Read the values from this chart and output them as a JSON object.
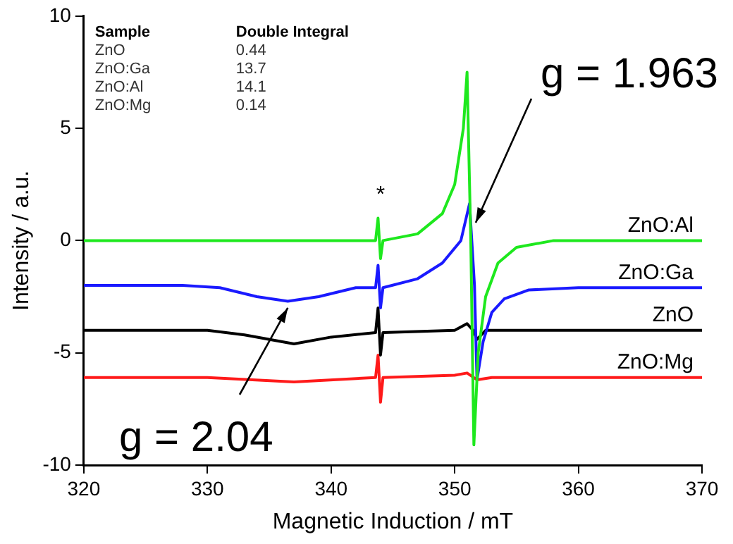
{
  "chart_data": {
    "type": "line",
    "xlabel": "Magnetic Induction / mT",
    "ylabel": "Intensity / a.u.",
    "xlim": [
      320,
      370
    ],
    "xticks": [
      320,
      330,
      340,
      350,
      360,
      370
    ],
    "ylim": [
      -10,
      10
    ],
    "yticks": [
      -10,
      -5,
      0,
      5,
      10
    ],
    "grid": false,
    "legend": false,
    "marker": "none",
    "line_style": "solid",
    "series": [
      {
        "name": "ZnO:Al",
        "color": "#1ee81e",
        "x": [
          320,
          330,
          340,
          343.6,
          343.8,
          344.0,
          344.2,
          347,
          349,
          350,
          350.7,
          351.0,
          351.3,
          351.55,
          351.9,
          352.5,
          353.5,
          355,
          358,
          370
        ],
        "values": [
          0,
          0,
          0,
          0,
          1.0,
          -0.8,
          0,
          0.3,
          1.2,
          2.5,
          5,
          7.5,
          0,
          -9.1,
          -5,
          -2.5,
          -1,
          -0.3,
          0,
          0
        ]
      },
      {
        "name": "ZnO:Ga",
        "color": "#1a1aff",
        "x": [
          320,
          328,
          331,
          334,
          336.5,
          339,
          342,
          343.6,
          343.8,
          344.0,
          344.2,
          347,
          349,
          350.5,
          351.2,
          351.6,
          351.8,
          352.3,
          353,
          354,
          356,
          360,
          370
        ],
        "values": [
          -2,
          -2,
          -2.1,
          -2.5,
          -2.7,
          -2.5,
          -2.1,
          -2.1,
          -1.1,
          -3.0,
          -2.1,
          -1.7,
          -1,
          0,
          1.65,
          -2,
          -6.2,
          -4.5,
          -3.2,
          -2.6,
          -2.2,
          -2.1,
          -2.1
        ]
      },
      {
        "name": "ZnO",
        "color": "#000000",
        "x": [
          320,
          330,
          333,
          337,
          340,
          343.6,
          343.8,
          344.0,
          344.2,
          350,
          351,
          351.5,
          351.8,
          352.5,
          370
        ],
        "values": [
          -4.0,
          -4.0,
          -4.2,
          -4.6,
          -4.3,
          -4.1,
          -3.0,
          -5.1,
          -4.1,
          -4.0,
          -3.7,
          -4.0,
          -4.4,
          -4.0,
          -4.0
        ]
      },
      {
        "name": "ZnO:Mg",
        "color": "#ff1a1a",
        "x": [
          320,
          330,
          337,
          343.6,
          343.8,
          344.0,
          344.2,
          350,
          351,
          351.8,
          353,
          370
        ],
        "values": [
          -6.1,
          -6.1,
          -6.3,
          -6.1,
          -5.1,
          -7.2,
          -6.1,
          -6.0,
          -5.9,
          -6.2,
          -6.1,
          -6.1
        ]
      }
    ],
    "annotations": [
      "Sample",
      "Double Integral",
      "ZnO",
      "0.44",
      "ZnO:Ga",
      "13.7",
      "ZnO:Al",
      "14.1",
      "ZnO:Mg",
      "0.14",
      {
        "text": "*",
        "x": 344,
        "y": 1.0
      },
      {
        "text": "g = 1.963",
        "x": 351.7,
        "y": 0.8
      },
      {
        "text": "g = 2.04",
        "x": 336.5,
        "y": -3.0
      }
    ]
  }
}
